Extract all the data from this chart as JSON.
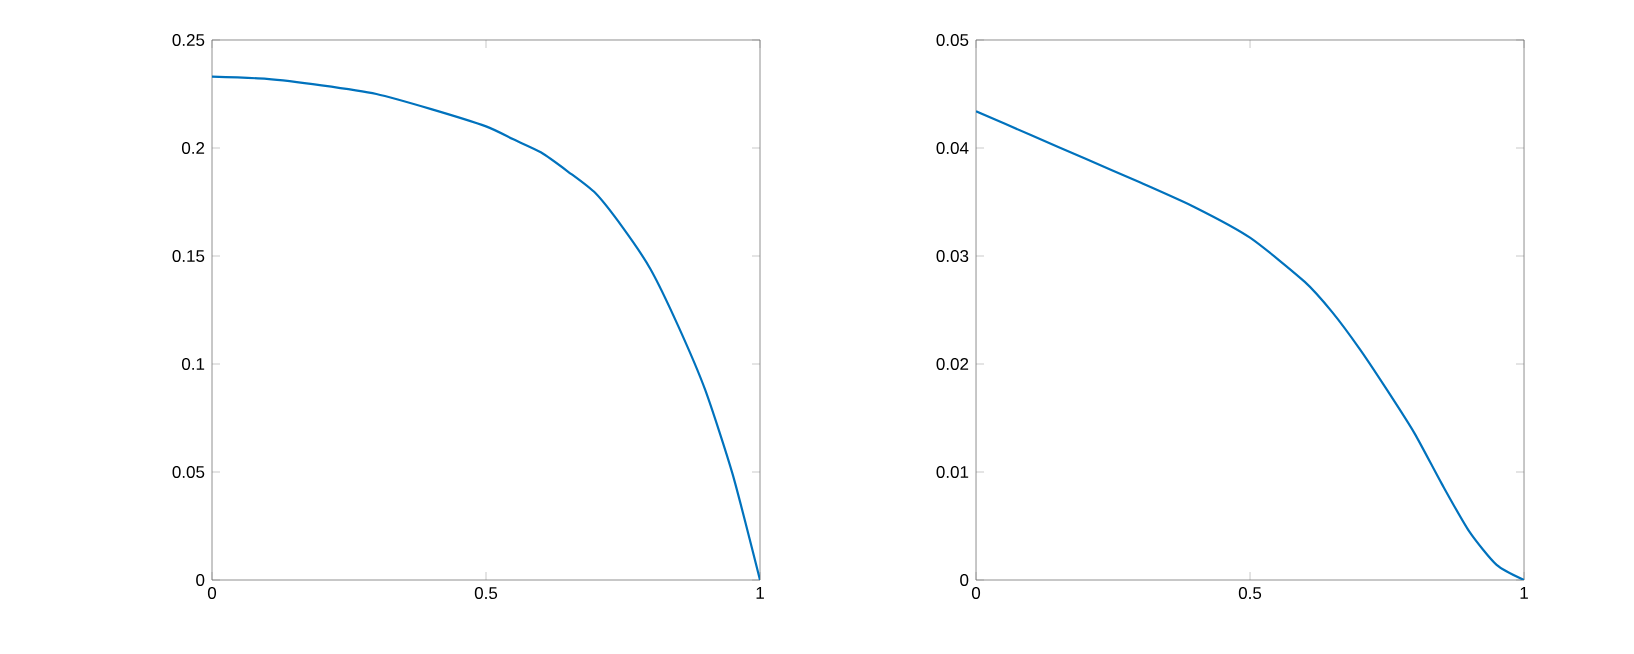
{
  "chart_data": [
    {
      "type": "line",
      "x": [
        0,
        0.1,
        0.2,
        0.3,
        0.4,
        0.5,
        0.55,
        0.6,
        0.65,
        0.7,
        0.75,
        0.8,
        0.85,
        0.9,
        0.95,
        1
      ],
      "series": [
        {
          "color": "#0072bd",
          "values": [
            0.233,
            0.232,
            0.229,
            0.225,
            0.218,
            0.21,
            0.204,
            0.198,
            0.189,
            0.179,
            0.163,
            0.144,
            0.118,
            0.088,
            0.049,
            0
          ]
        }
      ],
      "xlim": [
        0,
        1
      ],
      "ylim": [
        0,
        0.25
      ],
      "xticks": [
        0,
        0.5,
        1
      ],
      "yticks": [
        0,
        0.05,
        0.1,
        0.15,
        0.2,
        0.25
      ]
    },
    {
      "type": "line",
      "x": [
        0,
        0.1,
        0.2,
        0.3,
        0.4,
        0.5,
        0.6,
        0.65,
        0.7,
        0.75,
        0.8,
        0.85,
        0.9,
        0.95,
        1
      ],
      "series": [
        {
          "color": "#0072bd",
          "values": [
            0.0434,
            0.0412,
            0.039,
            0.0368,
            0.0345,
            0.0317,
            0.0276,
            0.0248,
            0.0214,
            0.0176,
            0.0136,
            0.0089,
            0.0045,
            0.0014,
            0
          ]
        }
      ],
      "xlim": [
        0,
        1
      ],
      "ylim": [
        0,
        0.05
      ],
      "xticks": [
        0,
        0.5,
        1
      ],
      "yticks": [
        0,
        0.01,
        0.02,
        0.03,
        0.04,
        0.05
      ]
    }
  ]
}
